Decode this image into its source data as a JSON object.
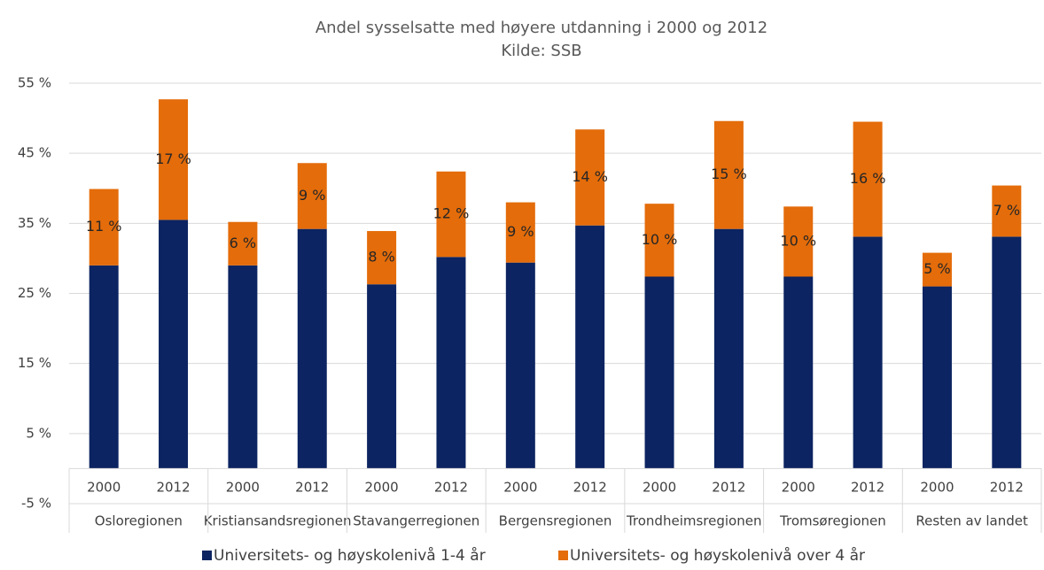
{
  "chart_data": {
    "type": "stacked_bar",
    "title": "Andel sysselsatte med høyere utdanning i 2000 og 2012",
    "subtitle": "Kilde: SSB",
    "categories": [
      "2000",
      "2012",
      "2000",
      "2012",
      "2000",
      "2012",
      "2000",
      "2012",
      "2000",
      "2012",
      "2000",
      "2012",
      "2000",
      "2012"
    ],
    "groups": [
      "Osloregionen",
      "Kristiansandsregionen",
      "Stavangerregionen",
      "Bergensregionen",
      "Trondheimsregionen",
      "Tromsøregionen",
      "Resten av landet"
    ],
    "series": [
      {
        "name": "Universitets- og høyskolenivå 1-4 år",
        "color": "#0c2461",
        "values": [
          29,
          35.5,
          29,
          34.2,
          26.3,
          30.2,
          29.4,
          34.7,
          27.4,
          34.2,
          27.4,
          33.1,
          26,
          33.1
        ]
      },
      {
        "name": "Universitets- og høyskolenivå over 4 år",
        "color": "#e46c0a",
        "values": [
          10.9,
          17.2,
          6.2,
          9.4,
          7.6,
          12.2,
          8.6,
          13.7,
          10.4,
          15.4,
          10.0,
          16.4,
          4.8,
          7.3
        ],
        "value_labels": [
          "11 %",
          "17 %",
          "6 %",
          "9 %",
          "8 %",
          "12 %",
          "9 %",
          "14 %",
          "10 %",
          "15 %",
          "10 %",
          "16 %",
          "5 %",
          "7 %"
        ]
      }
    ],
    "ylim": [
      -5,
      55
    ],
    "yticks": [
      {
        "value": -5,
        "label": "-5 %"
      },
      {
        "value": 5,
        "label": "5 %"
      },
      {
        "value": 15,
        "label": "15 %"
      },
      {
        "value": 25,
        "label": "25 %"
      },
      {
        "value": 35,
        "label": "35 %"
      },
      {
        "value": 45,
        "label": "45 %"
      },
      {
        "value": 55,
        "label": "55 %"
      }
    ],
    "grid": true,
    "legend": "bottom"
  }
}
